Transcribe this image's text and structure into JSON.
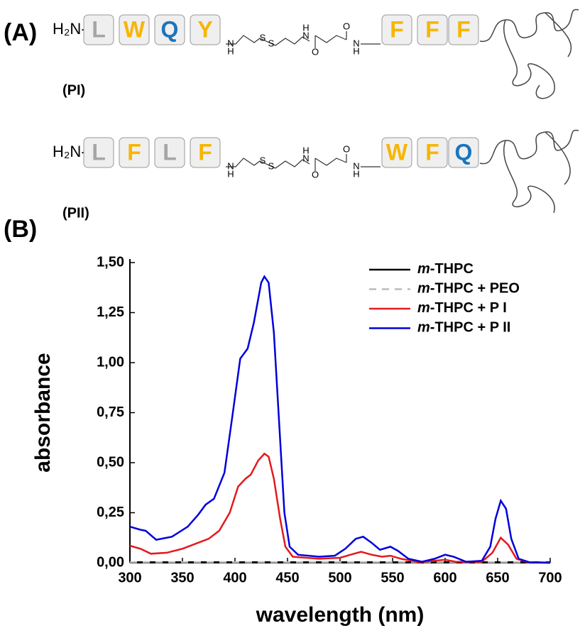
{
  "panel_a": {
    "label": "(A)",
    "rows": [
      {
        "amine": "H₂N-",
        "name": "(PI)",
        "residues_left": [
          {
            "letter": "L",
            "color": "#a6a6a6"
          },
          {
            "letter": "W",
            "color": "#f7b500"
          },
          {
            "letter": "Q",
            "color": "#1b75bc"
          },
          {
            "letter": "Y",
            "color": "#f7b500"
          }
        ],
        "linker_atoms": [
          "N",
          "H",
          "S",
          "S",
          "H",
          "N",
          "O",
          "O",
          "N",
          "H"
        ],
        "residues_right": [
          {
            "letter": "F",
            "color": "#f7b500"
          },
          {
            "letter": "F",
            "color": "#f7b500"
          },
          {
            "letter": "F",
            "color": "#f7b500"
          }
        ]
      },
      {
        "amine": "H₂N-",
        "name": "(PII)",
        "residues_left": [
          {
            "letter": "L",
            "color": "#a6a6a6"
          },
          {
            "letter": "F",
            "color": "#f7b500"
          },
          {
            "letter": "L",
            "color": "#a6a6a6"
          },
          {
            "letter": "F",
            "color": "#f7b500"
          }
        ],
        "linker_atoms": [
          "N",
          "H",
          "S",
          "S",
          "H",
          "N",
          "O",
          "O",
          "N",
          "H"
        ],
        "residues_right": [
          {
            "letter": "W",
            "color": "#f7b500"
          },
          {
            "letter": "F",
            "color": "#f7b500"
          },
          {
            "letter": "Q",
            "color": "#1b75bc"
          }
        ]
      }
    ]
  },
  "panel_b_label": "(B)",
  "chart_data": {
    "type": "line",
    "x_label": "wavelength (nm)",
    "y_label": "absorbance",
    "xlim": [
      300,
      700
    ],
    "xticks": [
      300,
      350,
      400,
      450,
      500,
      550,
      600,
      650,
      700
    ],
    "ylim": [
      0,
      1.5
    ],
    "yticks": [
      {
        "value": 0,
        "label": "0,00"
      },
      {
        "value": 0.25,
        "label": "0,25"
      },
      {
        "value": 0.5,
        "label": "0,50"
      },
      {
        "value": 0.75,
        "label": "0,75"
      },
      {
        "value": 1,
        "label": "1,00"
      },
      {
        "value": 1.25,
        "label": "1,25"
      },
      {
        "value": 1.5,
        "label": "1,50"
      }
    ],
    "legend": "top-right",
    "series": [
      {
        "name": "m-THPC",
        "color": "#000000",
        "dashed": false,
        "x": [
          300,
          700
        ],
        "values": [
          0.003,
          0.003
        ]
      },
      {
        "name": "m-THPC + PEO",
        "color": "#bbbbbb",
        "dashed": true,
        "x": [
          300,
          700
        ],
        "values": [
          0.003,
          0.003
        ]
      },
      {
        "name": "m-THPC + P I",
        "color": "#e31a1c",
        "dashed": false,
        "x": [
          300,
          310,
          320,
          335,
          350,
          365,
          375,
          385,
          395,
          403,
          410,
          415,
          422,
          428,
          432,
          437,
          443,
          448,
          455,
          480,
          500,
          510,
          520,
          530,
          540,
          548,
          558,
          575,
          590,
          600,
          610,
          635,
          645,
          653,
          660,
          668,
          680,
          700
        ],
        "values": [
          0.085,
          0.07,
          0.045,
          0.05,
          0.07,
          0.1,
          0.12,
          0.16,
          0.25,
          0.38,
          0.42,
          0.44,
          0.51,
          0.545,
          0.53,
          0.42,
          0.22,
          0.08,
          0.03,
          0.02,
          0.025,
          0.04,
          0.055,
          0.04,
          0.03,
          0.035,
          0.02,
          0.003,
          0.01,
          0.015,
          0.005,
          0.005,
          0.05,
          0.125,
          0.09,
          0.02,
          0,
          0
        ]
      },
      {
        "name": "m-THPC + P II",
        "color": "#0000dd",
        "dashed": false,
        "x": [
          300,
          310,
          315,
          325,
          340,
          355,
          365,
          372,
          380,
          390,
          398,
          405,
          412,
          418,
          425,
          428,
          432,
          437,
          442,
          447,
          452,
          460,
          480,
          495,
          505,
          515,
          522,
          530,
          538,
          548,
          555,
          565,
          578,
          590,
          600,
          608,
          620,
          635,
          643,
          648,
          653,
          658,
          663,
          670,
          680,
          700
        ],
        "values": [
          0.18,
          0.165,
          0.16,
          0.115,
          0.13,
          0.18,
          0.24,
          0.29,
          0.32,
          0.45,
          0.75,
          1.02,
          1.07,
          1.2,
          1.4,
          1.43,
          1.4,
          1.15,
          0.7,
          0.25,
          0.08,
          0.04,
          0.03,
          0.035,
          0.07,
          0.12,
          0.13,
          0.1,
          0.065,
          0.08,
          0.06,
          0.02,
          0.005,
          0.02,
          0.04,
          0.03,
          0.005,
          0.01,
          0.08,
          0.22,
          0.31,
          0.27,
          0.12,
          0.02,
          0.003,
          0
        ]
      }
    ]
  }
}
